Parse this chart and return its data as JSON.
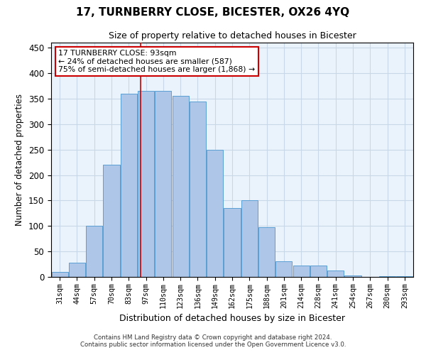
{
  "title": "17, TURNBERRY CLOSE, BICESTER, OX26 4YQ",
  "subtitle": "Size of property relative to detached houses in Bicester",
  "xlabel": "Distribution of detached houses by size in Bicester",
  "ylabel": "Number of detached properties",
  "categories": [
    "31sqm",
    "44sqm",
    "57sqm",
    "70sqm",
    "83sqm",
    "97sqm",
    "110sqm",
    "123sqm",
    "136sqm",
    "149sqm",
    "162sqm",
    "175sqm",
    "188sqm",
    "201sqm",
    "214sqm",
    "228sqm",
    "241sqm",
    "254sqm",
    "267sqm",
    "280sqm",
    "293sqm"
  ],
  "values": [
    10,
    28,
    100,
    220,
    360,
    365,
    365,
    355,
    345,
    250,
    135,
    150,
    97,
    30,
    22,
    22,
    12,
    3,
    0,
    2,
    1
  ],
  "bar_color": "#aec6e8",
  "bar_edge_color": "#5a9fd4",
  "grid_color": "#c8d8e8",
  "bg_color": "#eaf2fb",
  "property_line_x": 4.67,
  "annotation_text": "17 TURNBERRY CLOSE: 93sqm\n← 24% of detached houses are smaller (587)\n75% of semi-detached houses are larger (1,868) →",
  "annotation_box_color": "#ffffff",
  "annotation_box_edge_color": "#cc0000",
  "footnote1": "Contains HM Land Registry data © Crown copyright and database right 2024.",
  "footnote2": "Contains public sector information licensed under the Open Government Licence v3.0.",
  "ylim": [
    0,
    460
  ],
  "yticks": [
    0,
    50,
    100,
    150,
    200,
    250,
    300,
    350,
    400,
    450
  ]
}
